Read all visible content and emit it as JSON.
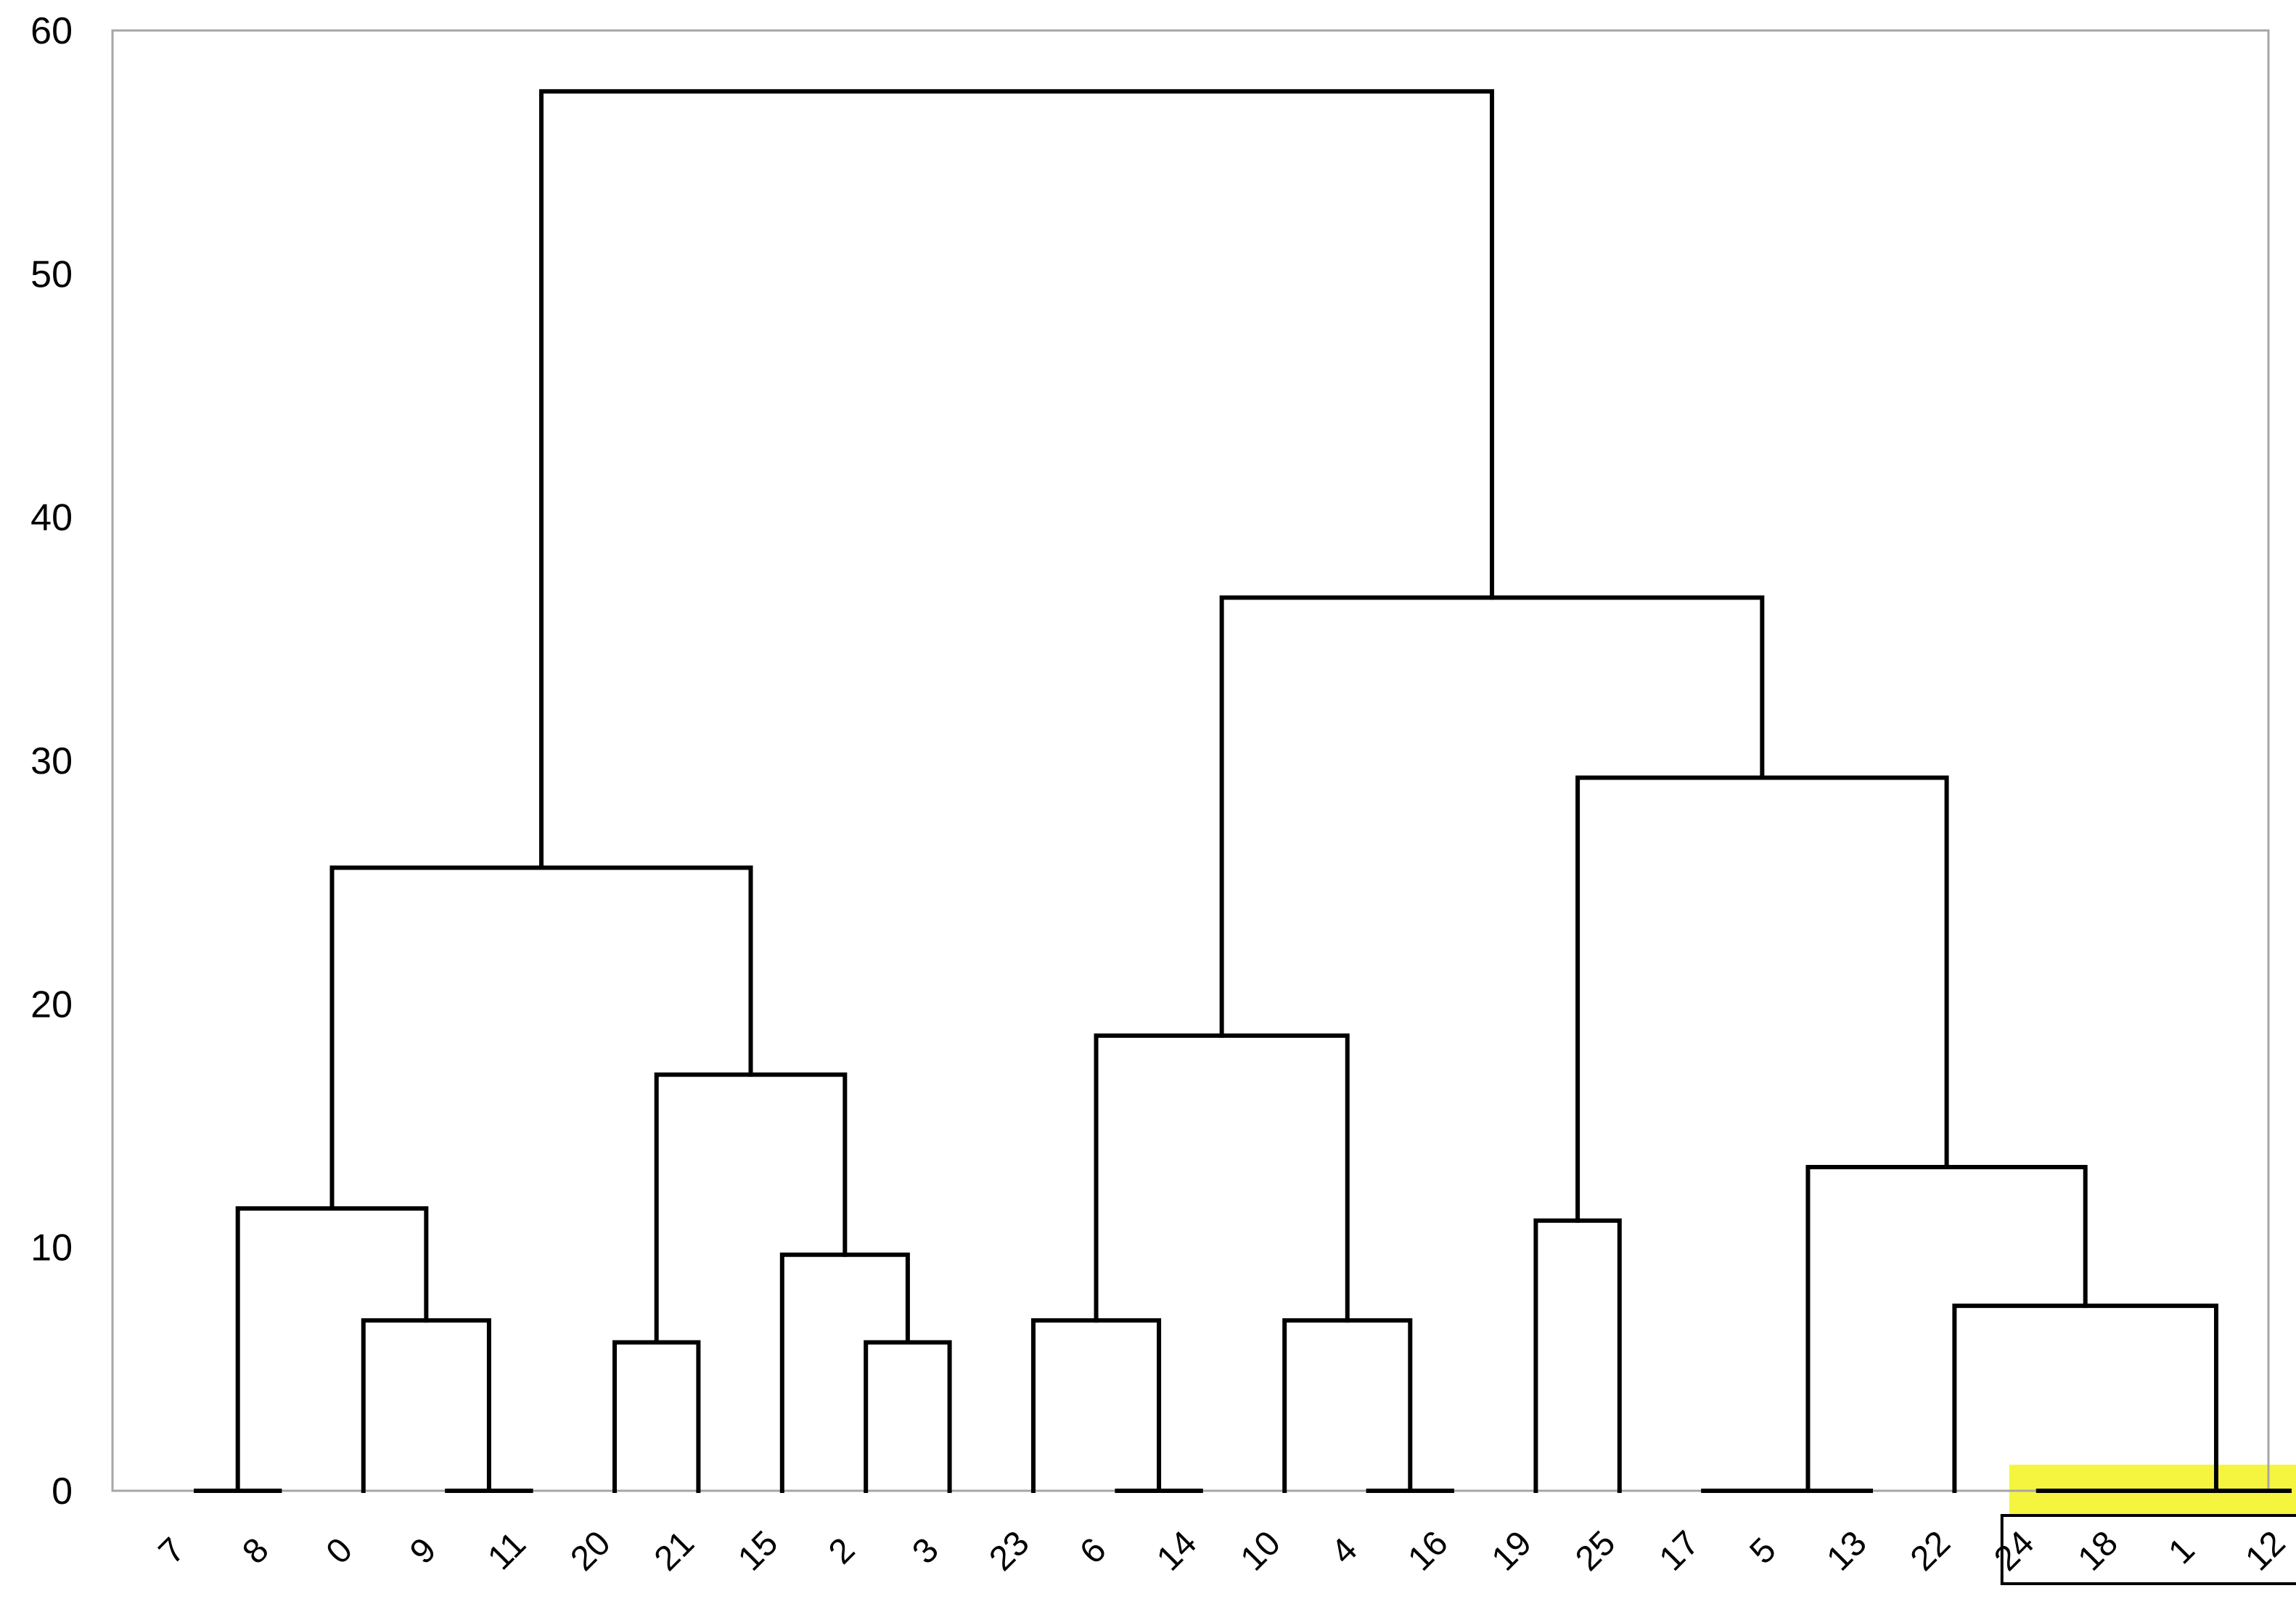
{
  "chart_data": {
    "type": "dendrogram",
    "title": "",
    "xlabel": "",
    "ylabel": "",
    "ylim": [
      0,
      60
    ],
    "yticks": [
      0,
      10,
      20,
      30,
      40,
      50,
      60
    ],
    "grid": false,
    "legend": "none",
    "leaves": [
      "7",
      "8",
      "0",
      "9",
      "11",
      "20",
      "21",
      "15",
      "2",
      "3",
      "23",
      "6",
      "14",
      "10",
      "4",
      "16",
      "19",
      "25",
      "17",
      "5",
      "13",
      "22",
      "24",
      "18",
      "1",
      "12"
    ],
    "merges": [
      {
        "id": "c1",
        "left": "7",
        "right": "8",
        "height": 0
      },
      {
        "id": "c2",
        "left": "9",
        "right": "11",
        "height": 0
      },
      {
        "id": "c3",
        "left": "6",
        "right": "14",
        "height": 0
      },
      {
        "id": "c4",
        "left": "4",
        "right": "16",
        "height": 0
      },
      {
        "id": "c5",
        "left": "17",
        "right": "5",
        "height": 0
      },
      {
        "id": "c6",
        "left": "c5",
        "right": "13",
        "height": 0
      },
      {
        "id": "c7",
        "left": "24",
        "right": "18",
        "height": 0
      },
      {
        "id": "c8",
        "left": "c7",
        "right": "1",
        "height": 0
      },
      {
        "id": "c9",
        "left": "c8",
        "right": "12",
        "height": 0
      },
      {
        "id": "c10",
        "left": "20",
        "right": "21",
        "height": 6.1
      },
      {
        "id": "c11",
        "left": "2",
        "right": "3",
        "height": 6.1
      },
      {
        "id": "c12",
        "left": "0",
        "right": "c2",
        "height": 7.0
      },
      {
        "id": "c13",
        "left": "23",
        "right": "c3",
        "height": 7.0
      },
      {
        "id": "c14",
        "left": "10",
        "right": "c4",
        "height": 7.0
      },
      {
        "id": "c15",
        "left": "22",
        "right": "c9",
        "height": 7.6
      },
      {
        "id": "c16",
        "left": "15",
        "right": "c11",
        "height": 9.7
      },
      {
        "id": "c17",
        "left": "19",
        "right": "25",
        "height": 11.1
      },
      {
        "id": "c18",
        "left": "c1",
        "right": "c12",
        "height": 11.6
      },
      {
        "id": "c19",
        "left": "c6",
        "right": "c15",
        "height": 13.3
      },
      {
        "id": "c20",
        "left": "c10",
        "right": "c16",
        "height": 17.1
      },
      {
        "id": "c21",
        "left": "c13",
        "right": "c14",
        "height": 18.7
      },
      {
        "id": "c22",
        "left": "c18",
        "right": "c20",
        "height": 25.6
      },
      {
        "id": "c23",
        "left": "c17",
        "right": "c19",
        "height": 29.3
      },
      {
        "id": "c24",
        "left": "c21",
        "right": "c23",
        "height": 36.7
      },
      {
        "id": "c25",
        "left": "c22",
        "right": "c24",
        "height": 57.5
      }
    ],
    "highlight": {
      "leaves": [
        "24",
        "18",
        "1",
        "12"
      ],
      "fill_color": "#f2f200",
      "box_color": "#000000"
    }
  }
}
